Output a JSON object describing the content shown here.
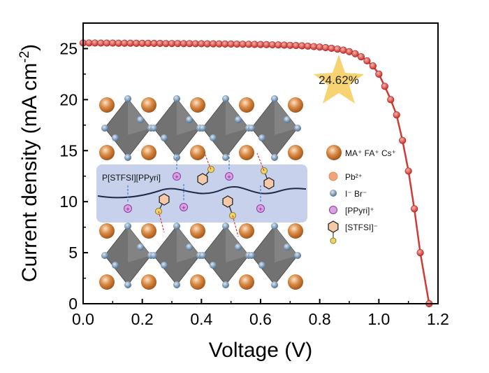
{
  "chart_data": {
    "type": "line",
    "xlabel": "Voltage (V)",
    "ylabel": "Current density (mA cm",
    "ylabel_sup": "-2",
    "ylabel_close": ")",
    "xlim": [
      0,
      1.2
    ],
    "ylim": [
      0,
      27.5
    ],
    "xticks": [
      "0.0",
      "0.2",
      "0.4",
      "0.6",
      "0.8",
      "1.0",
      "1.2"
    ],
    "yticks": [
      "0",
      "5",
      "10",
      "15",
      "20",
      "25"
    ],
    "grid": false,
    "line_color": "#d03a35",
    "x": [
      0,
      0.02,
      0.04,
      0.06,
      0.08,
      0.1,
      0.12,
      0.14,
      0.16,
      0.18,
      0.2,
      0.22,
      0.24,
      0.26,
      0.28,
      0.3,
      0.32,
      0.34,
      0.36,
      0.38,
      0.4,
      0.42,
      0.44,
      0.46,
      0.48,
      0.5,
      0.52,
      0.54,
      0.56,
      0.58,
      0.6,
      0.62,
      0.64,
      0.66,
      0.68,
      0.7,
      0.72,
      0.74,
      0.76,
      0.78,
      0.8,
      0.82,
      0.84,
      0.86,
      0.88,
      0.9,
      0.92,
      0.94,
      0.96,
      0.98,
      1.0,
      1.02,
      1.04,
      1.06,
      1.08,
      1.1,
      1.12,
      1.14,
      1.17
    ],
    "y": [
      25.55,
      25.55,
      25.55,
      25.54,
      25.54,
      25.54,
      25.53,
      25.53,
      25.53,
      25.52,
      25.52,
      25.52,
      25.51,
      25.51,
      25.5,
      25.5,
      25.5,
      25.49,
      25.49,
      25.48,
      25.48,
      25.47,
      25.47,
      25.46,
      25.45,
      25.45,
      25.44,
      25.43,
      25.42,
      25.41,
      25.4,
      25.39,
      25.37,
      25.36,
      25.34,
      25.32,
      25.3,
      25.27,
      25.24,
      25.2,
      25.15,
      25.1,
      25.03,
      24.95,
      24.85,
      24.7,
      24.5,
      24.2,
      23.8,
      23.3,
      22.5,
      21.3,
      20.0,
      18.5,
      16.0,
      13.0,
      9.3,
      5.0,
      0
    ],
    "annotation": "24.62%",
    "inset": {
      "band_label": "P[STFSI][PPyri]",
      "legend": [
        {
          "label": "MA⁺ FA⁺ Cs⁺",
          "color": "#c9762c"
        },
        {
          "label": "Pb²⁺",
          "color": "#f2a57a"
        },
        {
          "label": "I⁻ Br⁻",
          "color": "#6e8fae"
        },
        {
          "label": "[PPyri]⁺",
          "color": "#c77ad6"
        },
        {
          "label": "[STFSI]⁻",
          "color": "#f5c9a8"
        }
      ]
    }
  }
}
